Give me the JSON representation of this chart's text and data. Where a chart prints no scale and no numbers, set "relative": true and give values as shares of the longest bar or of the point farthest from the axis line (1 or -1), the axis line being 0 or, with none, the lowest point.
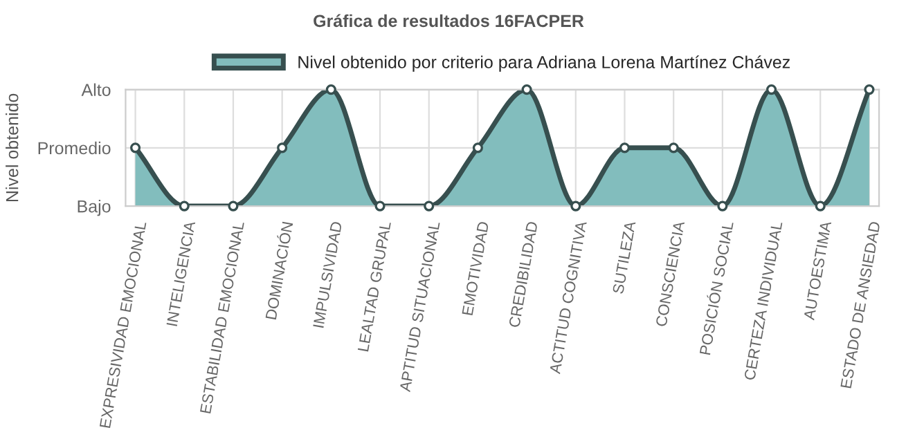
{
  "chart_data": {
    "type": "area",
    "title": "Gráfica de resultados 16FACPER",
    "ylabel": "Nivel obtenido",
    "categories": [
      "EXPRESIVIDAD EMOCIONAL",
      "INTELIGENCIA",
      "ESTABILIDAD EMOCIONAL",
      "DOMINACIÓN",
      "IMPULSIVIDAD",
      "LEALTAD GRUPAL",
      "APTITUD SITUACIONAL",
      "EMOTIVIDAD",
      "CREDIBILIDAD",
      "ACTITUD COGNITIVA",
      "SUTILEZA",
      "CONSCIENCIA",
      "POSICIÓN SOCIAL",
      "CERTEZA INDIVIDUAL",
      "AUTOESTIMA",
      "ESTADO DE ANSIEDAD"
    ],
    "series": [
      {
        "name": "Nivel obtenido por criterio para Adriana Lorena Martínez Chávez",
        "color": "#82bdbd",
        "values": [
          0.5,
          0,
          0,
          0.5,
          1,
          0,
          0,
          0.5,
          1,
          0,
          0.5,
          0.5,
          0,
          1,
          0,
          1
        ]
      }
    ],
    "relative": true,
    "y_categories": [
      "Alto",
      "Promedio",
      "Bajo"
    ],
    "grid": true,
    "legend": "top",
    "marker": "circle",
    "line_style": "solid"
  }
}
